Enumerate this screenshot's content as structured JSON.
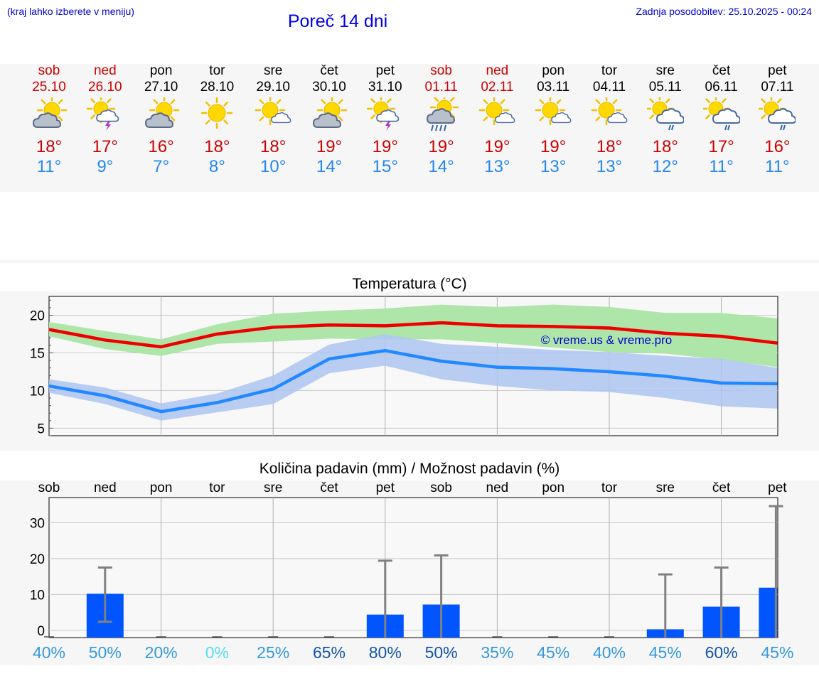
{
  "header": {
    "hint": "(kraj lahko izberete v meniju)",
    "title": "Poreč 14 dni",
    "updated": "Zadnja posodobitev: 25.10.2025 - 00:24"
  },
  "days": [
    {
      "name": "sob",
      "date": "25.10",
      "icon": "sun-cloud-icon",
      "max": "18°",
      "min": "11°",
      "weekend": true
    },
    {
      "name": "ned",
      "date": "26.10",
      "icon": "sun-storm-icon",
      "max": "17°",
      "min": "9°",
      "weekend": true
    },
    {
      "name": "pon",
      "date": "27.10",
      "icon": "sun-cloud-icon",
      "max": "16°",
      "min": "7°",
      "weekend": false
    },
    {
      "name": "tor",
      "date": "28.10",
      "icon": "sun-icon",
      "max": "18°",
      "min": "8°",
      "weekend": false
    },
    {
      "name": "sre",
      "date": "29.10",
      "icon": "sun-small-cloud-icon",
      "max": "18°",
      "min": "10°",
      "weekend": false
    },
    {
      "name": "čet",
      "date": "30.10",
      "icon": "sun-cloud-icon",
      "max": "19°",
      "min": "14°",
      "weekend": false
    },
    {
      "name": "pet",
      "date": "31.10",
      "icon": "sun-storm-icon",
      "max": "19°",
      "min": "15°",
      "weekend": false
    },
    {
      "name": "sob",
      "date": "01.11",
      "icon": "sun-heavy-rain-icon",
      "max": "19°",
      "min": "14°",
      "weekend": true
    },
    {
      "name": "ned",
      "date": "02.11",
      "icon": "sun-small-cloud-icon",
      "max": "19°",
      "min": "13°",
      "weekend": true
    },
    {
      "name": "pon",
      "date": "03.11",
      "icon": "sun-small-cloud-icon",
      "max": "19°",
      "min": "13°",
      "weekend": false
    },
    {
      "name": "tor",
      "date": "04.11",
      "icon": "sun-small-cloud-icon",
      "max": "18°",
      "min": "13°",
      "weekend": false
    },
    {
      "name": "sre",
      "date": "05.11",
      "icon": "sun-cloud-rain-icon",
      "max": "18°",
      "min": "12°",
      "weekend": false
    },
    {
      "name": "čet",
      "date": "06.11",
      "icon": "sun-cloud-rain-icon",
      "max": "17°",
      "min": "11°",
      "weekend": false
    },
    {
      "name": "pet",
      "date": "07.11",
      "icon": "sun-cloud-rain-icon",
      "max": "16°",
      "min": "11°",
      "weekend": false
    }
  ],
  "colors": {
    "max_line": "#ee0000",
    "min_line": "#2288ff",
    "max_band": "#aee6aa",
    "min_band": "#aec6f2",
    "overlap_band": "#88ccaa",
    "bar": "#0055ff",
    "whisker": "#808080",
    "watermark": "#0000cc"
  },
  "chart_data": [
    {
      "type": "line",
      "title": "Temperatura (°C)",
      "categories": [
        "sob",
        "ned",
        "pon",
        "tor",
        "sre",
        "čet",
        "pet",
        "sob",
        "ned",
        "pon",
        "tor",
        "sre",
        "čet",
        "pet"
      ],
      "ylim": [
        4,
        22.5
      ],
      "yticks": [
        5,
        10,
        15,
        20
      ],
      "grid": true,
      "annotation": "© vreme.us & vreme.pro",
      "series": [
        {
          "role": "max",
          "values": [
            18.1,
            16.7,
            15.8,
            17.5,
            18.4,
            18.7,
            18.6,
            19.0,
            18.6,
            18.5,
            18.3,
            17.6,
            17.2,
            16.3
          ],
          "low": [
            17.2,
            15.5,
            14.6,
            16.2,
            16.5,
            16.9,
            16.8,
            16.8,
            16.3,
            15.7,
            15.1,
            14.9,
            14.1,
            13.1
          ],
          "high": [
            19.1,
            17.9,
            16.8,
            18.8,
            20.2,
            20.6,
            20.9,
            21.4,
            21.1,
            21.4,
            21.1,
            20.3,
            20.3,
            19.6
          ]
        },
        {
          "role": "min",
          "values": [
            10.6,
            9.3,
            7.2,
            8.4,
            10.2,
            14.2,
            15.3,
            13.9,
            13.1,
            12.9,
            12.5,
            11.9,
            11.0,
            10.9
          ],
          "low": [
            9.7,
            8.2,
            6.0,
            7.1,
            8.2,
            12.3,
            13.3,
            11.5,
            10.6,
            10.0,
            9.8,
            9.0,
            7.9,
            7.6
          ],
          "high": [
            11.5,
            10.4,
            8.3,
            9.6,
            12.0,
            16.1,
            17.5,
            16.2,
            15.8,
            15.4,
            15.1,
            14.6,
            14.2,
            13.0
          ]
        }
      ]
    },
    {
      "type": "bar",
      "title": "Količina padavin (mm) / Možnost padavin (%)",
      "categories": [
        "sob",
        "ned",
        "pon",
        "tor",
        "sre",
        "čet",
        "pet",
        "sob",
        "ned",
        "pon",
        "tor",
        "sre",
        "čet",
        "pet"
      ],
      "ylim": [
        -2,
        37
      ],
      "yticks": [
        0,
        10,
        20,
        30
      ],
      "grid": true,
      "values": [
        0,
        10.2,
        0,
        0,
        0,
        0,
        4.4,
        7.2,
        0,
        0,
        0,
        0.3,
        6.6,
        11.9
      ],
      "whisker_low": [
        0,
        2.4,
        0,
        0,
        0,
        0,
        0,
        0,
        0,
        0,
        0,
        0,
        0,
        0
      ],
      "whisker_high": [
        0,
        17.5,
        0,
        0,
        0,
        0,
        19.4,
        20.9,
        0,
        0,
        0,
        15.6,
        17.5,
        34.6
      ],
      "probabilities": [
        "40%",
        "50%",
        "20%",
        "0%",
        "25%",
        "65%",
        "80%",
        "50%",
        "35%",
        "45%",
        "40%",
        "45%",
        "60%",
        "45%"
      ],
      "prob_colors": [
        "#3399dd",
        "#3399dd",
        "#3399dd",
        "#55ddee",
        "#3399dd",
        "#1155aa",
        "#1155aa",
        "#1155aa",
        "#3399dd",
        "#3399dd",
        "#3399dd",
        "#3399dd",
        "#1155aa",
        "#3399dd"
      ]
    }
  ]
}
